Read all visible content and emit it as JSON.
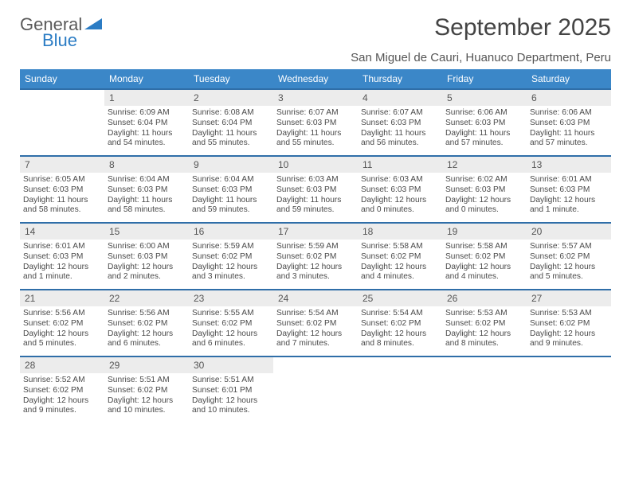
{
  "brand": {
    "text1": "General",
    "text2": "Blue",
    "color1": "#5a5a5a",
    "color2": "#2b7cc4"
  },
  "title": "September 2025",
  "location": "San Miguel de Cauri, Huanuco Department, Peru",
  "dayHeaders": [
    "Sunday",
    "Monday",
    "Tuesday",
    "Wednesday",
    "Thursday",
    "Friday",
    "Saturday"
  ],
  "calendar": {
    "type": "table",
    "columns": 7,
    "header_bg": "#3b87c8",
    "header_text_color": "#ffffff",
    "daynum_bg": "#ececec",
    "daynum_border_color": "#2f6ea8",
    "text_color": "#4a4a4a",
    "font_size_header": 12,
    "font_size_cell": 10.2,
    "weeks": [
      [
        null,
        {
          "n": "1",
          "sunrise": "6:09 AM",
          "sunset": "6:04 PM",
          "daylight": "11 hours and 54 minutes."
        },
        {
          "n": "2",
          "sunrise": "6:08 AM",
          "sunset": "6:04 PM",
          "daylight": "11 hours and 55 minutes."
        },
        {
          "n": "3",
          "sunrise": "6:07 AM",
          "sunset": "6:03 PM",
          "daylight": "11 hours and 55 minutes."
        },
        {
          "n": "4",
          "sunrise": "6:07 AM",
          "sunset": "6:03 PM",
          "daylight": "11 hours and 56 minutes."
        },
        {
          "n": "5",
          "sunrise": "6:06 AM",
          "sunset": "6:03 PM",
          "daylight": "11 hours and 57 minutes."
        },
        {
          "n": "6",
          "sunrise": "6:06 AM",
          "sunset": "6:03 PM",
          "daylight": "11 hours and 57 minutes."
        }
      ],
      [
        {
          "n": "7",
          "sunrise": "6:05 AM",
          "sunset": "6:03 PM",
          "daylight": "11 hours and 58 minutes."
        },
        {
          "n": "8",
          "sunrise": "6:04 AM",
          "sunset": "6:03 PM",
          "daylight": "11 hours and 58 minutes."
        },
        {
          "n": "9",
          "sunrise": "6:04 AM",
          "sunset": "6:03 PM",
          "daylight": "11 hours and 59 minutes."
        },
        {
          "n": "10",
          "sunrise": "6:03 AM",
          "sunset": "6:03 PM",
          "daylight": "11 hours and 59 minutes."
        },
        {
          "n": "11",
          "sunrise": "6:03 AM",
          "sunset": "6:03 PM",
          "daylight": "12 hours and 0 minutes."
        },
        {
          "n": "12",
          "sunrise": "6:02 AM",
          "sunset": "6:03 PM",
          "daylight": "12 hours and 0 minutes."
        },
        {
          "n": "13",
          "sunrise": "6:01 AM",
          "sunset": "6:03 PM",
          "daylight": "12 hours and 1 minute."
        }
      ],
      [
        {
          "n": "14",
          "sunrise": "6:01 AM",
          "sunset": "6:03 PM",
          "daylight": "12 hours and 1 minute."
        },
        {
          "n": "15",
          "sunrise": "6:00 AM",
          "sunset": "6:03 PM",
          "daylight": "12 hours and 2 minutes."
        },
        {
          "n": "16",
          "sunrise": "5:59 AM",
          "sunset": "6:02 PM",
          "daylight": "12 hours and 3 minutes."
        },
        {
          "n": "17",
          "sunrise": "5:59 AM",
          "sunset": "6:02 PM",
          "daylight": "12 hours and 3 minutes."
        },
        {
          "n": "18",
          "sunrise": "5:58 AM",
          "sunset": "6:02 PM",
          "daylight": "12 hours and 4 minutes."
        },
        {
          "n": "19",
          "sunrise": "5:58 AM",
          "sunset": "6:02 PM",
          "daylight": "12 hours and 4 minutes."
        },
        {
          "n": "20",
          "sunrise": "5:57 AM",
          "sunset": "6:02 PM",
          "daylight": "12 hours and 5 minutes."
        }
      ],
      [
        {
          "n": "21",
          "sunrise": "5:56 AM",
          "sunset": "6:02 PM",
          "daylight": "12 hours and 5 minutes."
        },
        {
          "n": "22",
          "sunrise": "5:56 AM",
          "sunset": "6:02 PM",
          "daylight": "12 hours and 6 minutes."
        },
        {
          "n": "23",
          "sunrise": "5:55 AM",
          "sunset": "6:02 PM",
          "daylight": "12 hours and 6 minutes."
        },
        {
          "n": "24",
          "sunrise": "5:54 AM",
          "sunset": "6:02 PM",
          "daylight": "12 hours and 7 minutes."
        },
        {
          "n": "25",
          "sunrise": "5:54 AM",
          "sunset": "6:02 PM",
          "daylight": "12 hours and 8 minutes."
        },
        {
          "n": "26",
          "sunrise": "5:53 AM",
          "sunset": "6:02 PM",
          "daylight": "12 hours and 8 minutes."
        },
        {
          "n": "27",
          "sunrise": "5:53 AM",
          "sunset": "6:02 PM",
          "daylight": "12 hours and 9 minutes."
        }
      ],
      [
        {
          "n": "28",
          "sunrise": "5:52 AM",
          "sunset": "6:02 PM",
          "daylight": "12 hours and 9 minutes."
        },
        {
          "n": "29",
          "sunrise": "5:51 AM",
          "sunset": "6:02 PM",
          "daylight": "12 hours and 10 minutes."
        },
        {
          "n": "30",
          "sunrise": "5:51 AM",
          "sunset": "6:01 PM",
          "daylight": "12 hours and 10 minutes."
        },
        null,
        null,
        null,
        null
      ]
    ],
    "labels": {
      "sunrise": "Sunrise:",
      "sunset": "Sunset:",
      "daylight": "Daylight:"
    }
  }
}
